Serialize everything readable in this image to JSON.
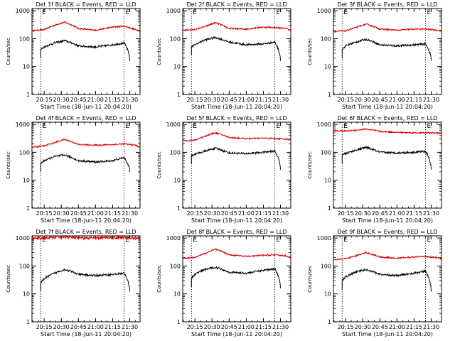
{
  "colors": {
    "events": "#000000",
    "lld": "#dd0000",
    "axes": "#000000",
    "background": "#ffffff"
  },
  "shared": {
    "ylabel": "Counts/sec",
    "xlabel": "Start Time (18-Jun-11 20:04:20)",
    "x_tick_labels": [
      "20:15",
      "20:30",
      "20:45",
      "21:00",
      "21:15",
      "21:30"
    ],
    "y_tick_labels": [
      "1",
      "10",
      "100",
      "1000"
    ],
    "yscale": "log",
    "ylim": [
      1,
      1200
    ],
    "xlim": [
      "20:04:20",
      "21:39:00"
    ],
    "marker_label": "E",
    "markers": [
      "20:12:00",
      "21:25:00"
    ]
  },
  "chart_data": [
    {
      "type": "line",
      "title": "Det 1f BLACK = Events, RED = LLD",
      "series": [
        {
          "color": "red",
          "start": "20:04:20",
          "end": "21:39:00",
          "x": [
            "20:04",
            "20:15",
            "20:24",
            "20:33",
            "20:45",
            "21:00",
            "21:15",
            "21:25",
            "21:35",
            "21:39"
          ],
          "values": [
            190,
            210,
            300,
            390,
            230,
            200,
            260,
            280,
            210,
            190
          ]
        },
        {
          "color": "black",
          "start": "20:12:00",
          "end": "21:30:00",
          "x": [
            "20:12",
            "20:15",
            "20:24",
            "20:33",
            "20:45",
            "21:00",
            "21:15",
            "21:25",
            "21:30"
          ],
          "values": [
            40,
            50,
            70,
            85,
            55,
            50,
            60,
            70,
            20
          ]
        }
      ]
    },
    {
      "type": "line",
      "title": "Det 2f BLACK = Events, RED = LLD",
      "series": [
        {
          "color": "red",
          "start": "20:04:20",
          "end": "21:39:00",
          "x": [
            "20:04",
            "20:15",
            "20:24",
            "20:33",
            "20:45",
            "21:00",
            "21:15",
            "21:25",
            "21:35",
            "21:39"
          ],
          "values": [
            200,
            210,
            270,
            370,
            230,
            220,
            260,
            250,
            230,
            200
          ]
        },
        {
          "color": "black",
          "start": "20:12:00",
          "end": "21:30:00",
          "x": [
            "20:12",
            "20:15",
            "20:24",
            "20:33",
            "20:45",
            "21:00",
            "21:15",
            "21:25",
            "21:30"
          ],
          "values": [
            50,
            60,
            90,
            110,
            75,
            60,
            65,
            75,
            20
          ]
        }
      ]
    },
    {
      "type": "line",
      "title": "Det 3f BLACK = Events, RED = LLD",
      "series": [
        {
          "color": "red",
          "start": "20:04:20",
          "end": "21:39:00",
          "x": [
            "20:04",
            "20:15",
            "20:24",
            "20:33",
            "20:45",
            "21:00",
            "21:15",
            "21:25",
            "21:35",
            "21:39"
          ],
          "values": [
            180,
            190,
            250,
            330,
            220,
            200,
            220,
            220,
            200,
            190
          ]
        },
        {
          "color": "black",
          "start": "20:12:00",
          "end": "21:30:00",
          "x": [
            "20:12",
            "20:15",
            "20:24",
            "20:33",
            "20:45",
            "21:00",
            "21:15",
            "21:25",
            "21:30"
          ],
          "values": [
            40,
            55,
            75,
            95,
            60,
            55,
            60,
            65,
            20
          ]
        }
      ]
    },
    {
      "type": "line",
      "title": "Det 4f BLACK = Events, RED = LLD",
      "series": [
        {
          "color": "red",
          "start": "20:04:20",
          "end": "21:39:00",
          "x": [
            "20:04",
            "20:15",
            "20:24",
            "20:33",
            "20:45",
            "21:00",
            "21:15",
            "21:25",
            "21:35",
            "21:39"
          ],
          "values": [
            150,
            170,
            220,
            290,
            190,
            180,
            190,
            200,
            180,
            150
          ]
        },
        {
          "color": "black",
          "start": "20:12:00",
          "end": "21:30:00",
          "x": [
            "20:12",
            "20:15",
            "20:24",
            "20:33",
            "20:45",
            "21:00",
            "21:15",
            "21:25",
            "21:30"
          ],
          "values": [
            40,
            50,
            70,
            80,
            50,
            45,
            50,
            65,
            25
          ]
        }
      ]
    },
    {
      "type": "line",
      "title": "Det 5f BLACK = Events, RED = LLD",
      "series": [
        {
          "color": "red",
          "start": "20:04:20",
          "end": "21:39:00",
          "x": [
            "20:04",
            "20:15",
            "20:24",
            "20:33",
            "20:45",
            "21:00",
            "21:15",
            "21:25",
            "21:35",
            "21:39"
          ],
          "values": [
            260,
            270,
            380,
            500,
            340,
            310,
            320,
            310,
            300,
            280
          ]
        },
        {
          "color": "black",
          "start": "20:12:00",
          "end": "21:30:00",
          "x": [
            "20:12",
            "20:15",
            "20:24",
            "20:33",
            "20:45",
            "21:00",
            "21:15",
            "21:25",
            "21:30"
          ],
          "values": [
            75,
            85,
            110,
            140,
            95,
            90,
            100,
            110,
            30
          ]
        }
      ]
    },
    {
      "type": "line",
      "title": "Det 6f BLACK = Events, RED = LLD",
      "series": [
        {
          "color": "red",
          "start": "20:04:20",
          "end": "21:39:00",
          "x": [
            "20:04",
            "20:15",
            "20:24",
            "20:33",
            "20:45",
            "21:00",
            "21:15",
            "21:25",
            "21:35",
            "21:39"
          ],
          "values": [
            600,
            580,
            620,
            680,
            560,
            520,
            500,
            500,
            490,
            480
          ]
        },
        {
          "color": "black",
          "start": "20:12:00",
          "end": "21:30:00",
          "x": [
            "20:12",
            "20:15",
            "20:24",
            "20:33",
            "20:45",
            "21:00",
            "21:15",
            "21:25",
            "21:30"
          ],
          "values": [
            80,
            90,
            120,
            150,
            100,
            95,
            100,
            110,
            30
          ]
        }
      ]
    },
    {
      "type": "line",
      "title": "Det 7f BLACK = Events, RED = LLD",
      "series": [
        {
          "color": "red",
          "start": "20:04:20",
          "end": "21:39:00",
          "x": [
            "20:04",
            "20:15",
            "20:24",
            "20:33",
            "20:45",
            "21:00",
            "21:15",
            "21:25",
            "21:35",
            "21:39"
          ],
          "values": [
            950,
            1000,
            1050,
            1100,
            1000,
            1000,
            1050,
            1050,
            1000,
            980
          ]
        },
        {
          "color": "black",
          "start": "20:12:00",
          "end": "21:30:00",
          "x": [
            "20:12",
            "20:15",
            "20:24",
            "20:33",
            "20:45",
            "21:00",
            "21:15",
            "21:25",
            "21:30"
          ],
          "values": [
            25,
            35,
            55,
            75,
            50,
            45,
            50,
            55,
            15
          ]
        }
      ]
    },
    {
      "type": "line",
      "title": "Det 8f BLACK = Events, RED = LLD",
      "series": [
        {
          "color": "red",
          "start": "20:04:20",
          "end": "21:39:00",
          "x": [
            "20:04",
            "20:15",
            "20:24",
            "20:33",
            "20:45",
            "21:00",
            "21:15",
            "21:25",
            "21:35",
            "21:39"
          ],
          "values": [
            190,
            200,
            280,
            400,
            250,
            220,
            240,
            250,
            230,
            200
          ]
        },
        {
          "color": "black",
          "start": "20:12:00",
          "end": "21:30:00",
          "x": [
            "20:12",
            "20:15",
            "20:24",
            "20:33",
            "20:45",
            "21:00",
            "21:15",
            "21:25",
            "21:30"
          ],
          "values": [
            35,
            50,
            75,
            90,
            60,
            55,
            70,
            80,
            20
          ]
        }
      ]
    },
    {
      "type": "line",
      "title": "Det 9f BLACK = Events, RED = LLD",
      "series": [
        {
          "color": "red",
          "start": "20:04:20",
          "end": "21:39:00",
          "x": [
            "20:04",
            "20:15",
            "20:24",
            "20:33",
            "20:45",
            "21:00",
            "21:15",
            "21:25",
            "21:35",
            "21:39"
          ],
          "values": [
            170,
            180,
            230,
            300,
            210,
            190,
            210,
            220,
            200,
            180
          ]
        },
        {
          "color": "black",
          "start": "20:12:00",
          "end": "21:30:00",
          "x": [
            "20:12",
            "20:15",
            "20:24",
            "20:33",
            "20:45",
            "21:00",
            "21:15",
            "21:25",
            "21:30"
          ],
          "values": [
            30,
            40,
            60,
            75,
            50,
            45,
            55,
            65,
            15
          ]
        }
      ]
    }
  ]
}
